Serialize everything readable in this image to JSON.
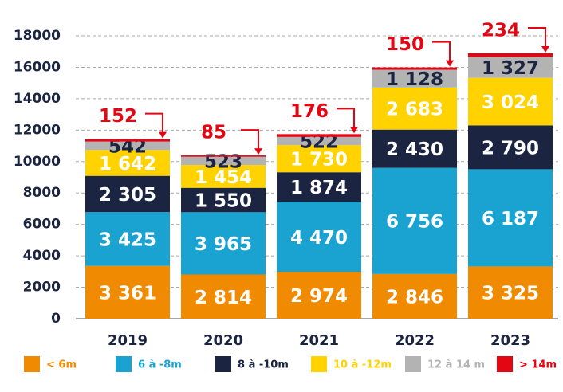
{
  "chart_data": {
    "type": "stacked_bar",
    "categories": [
      "2019",
      "2020",
      "2021",
      "2022",
      "2023"
    ],
    "series": [
      {
        "name": "< 6m",
        "color": "#f08a00",
        "values": [
          3361,
          2814,
          2974,
          2846,
          3325
        ],
        "value_labels": [
          "3 361",
          "2 814",
          "2 974",
          "2 846",
          "3 325"
        ]
      },
      {
        "name": "6 à -8m",
        "color": "#1aa3d1",
        "values": [
          3425,
          3965,
          4470,
          6756,
          6187
        ],
        "value_labels": [
          "3 425",
          "3 965",
          "4 470",
          "6 756",
          "6 187"
        ]
      },
      {
        "name": "8 à -10m",
        "color": "#1b2440",
        "values": [
          2305,
          1550,
          1874,
          2430,
          2790
        ],
        "value_labels": [
          "2 305",
          "1 550",
          "1 874",
          "2 430",
          "2 790"
        ]
      },
      {
        "name": "10 à -12m",
        "color": "#ffd200",
        "values": [
          1642,
          1454,
          1730,
          2683,
          3024
        ],
        "value_labels": [
          "1 642",
          "1 454",
          "1 730",
          "2 683",
          "3 024"
        ]
      },
      {
        "name": "12 à 14 m",
        "color": "#b3b3b3",
        "values": [
          542,
          523,
          522,
          1128,
          1327
        ],
        "value_labels": [
          "542",
          "523",
          "522",
          "1 128",
          "1 327"
        ]
      },
      {
        "name": "> 14m",
        "color": "#e30613",
        "values": [
          152,
          85,
          176,
          150,
          234
        ]
      }
    ],
    "ylim": [
      0,
      18000
    ],
    "yticks": [
      0,
      2000,
      4000,
      6000,
      8000,
      10000,
      12000,
      14000,
      16000,
      18000
    ],
    "grid": true,
    "legend": "bottom"
  }
}
